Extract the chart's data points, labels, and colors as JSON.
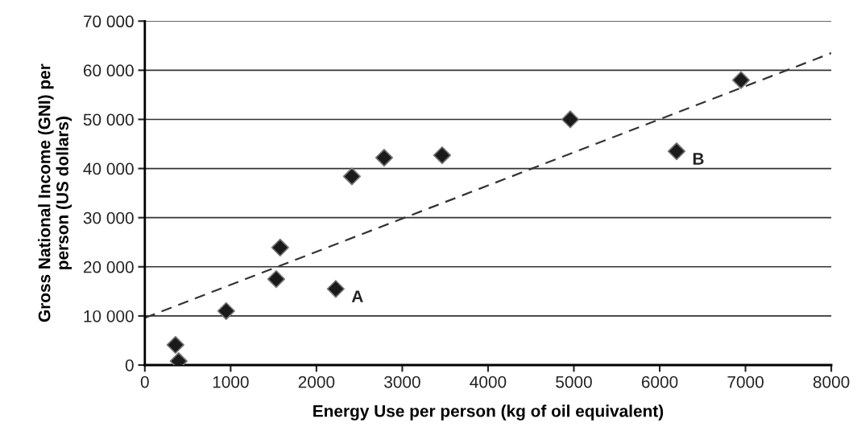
{
  "chart_data": {
    "type": "scatter",
    "xlabel": "Energy Use per person (kg of oil equivalent)",
    "ylabel": "Gross National Income (GNI) per\nperson (US dollars)",
    "series": [
      {
        "color": "#1a1a1a",
        "marker": "diamond",
        "x": [
          357,
          394,
          948,
          1531,
          1577,
          2225,
          2413,
          2789,
          3465,
          4958,
          6197,
          6948
        ],
        "values": [
          4100,
          800,
          11000,
          17500,
          23900,
          15500,
          38400,
          42200,
          42700,
          50000,
          43500,
          58000
        ]
      },
      {
        "type": "line",
        "color": "#333333",
        "line_style": "dashed",
        "marker": "none",
        "x": [
          0,
          8000
        ],
        "values": [
          9600,
          63500
        ]
      }
    ],
    "annotations": [
      {
        "text": "A",
        "x": 2225,
        "y": 15500
      },
      {
        "text": "B",
        "x": 6197,
        "y": 43500
      }
    ],
    "xlim": [
      0,
      8000
    ],
    "xticks": [
      0,
      1000,
      2000,
      3000,
      4000,
      5000,
      6000,
      7000,
      8000
    ],
    "ylim": [
      0,
      70000
    ],
    "yticks": [
      {
        "value": 0,
        "label": "0"
      },
      {
        "value": 10000,
        "label": "10 000"
      },
      {
        "value": 20000,
        "label": "20 000"
      },
      {
        "value": 30000,
        "label": "30 000"
      },
      {
        "value": 40000,
        "label": "40 000"
      },
      {
        "value": 50000,
        "label": "50 000"
      },
      {
        "value": 60000,
        "label": "60 000"
      },
      {
        "value": 70000,
        "label": "70 000"
      }
    ],
    "grid": "y",
    "legend": false
  }
}
